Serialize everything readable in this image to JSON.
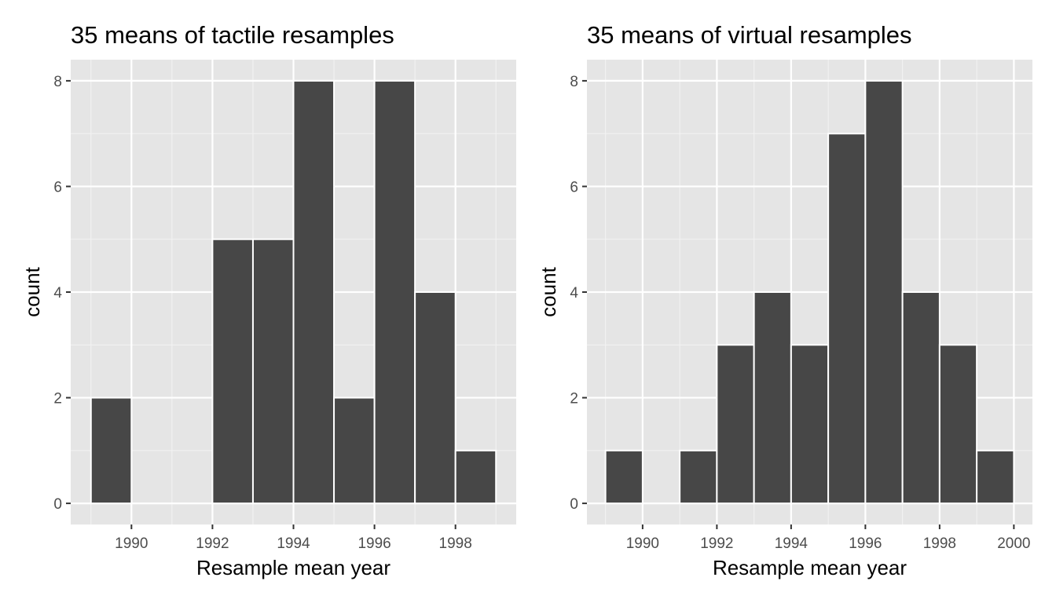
{
  "chart_data": [
    {
      "type": "bar",
      "title": "35 means of tactile resamples",
      "xlabel": "Resample mean year",
      "ylabel": "count",
      "xlim": [
        1988.5,
        1999.5
      ],
      "ylim": [
        -0.4,
        8.4
      ],
      "xticks": [
        1990,
        1992,
        1994,
        1996,
        1998
      ],
      "yticks": [
        0,
        2,
        4,
        6,
        8
      ],
      "bin_width": 1,
      "bins": [
        {
          "x0": 1989,
          "x1": 1990,
          "count": 2
        },
        {
          "x0": 1992,
          "x1": 1993,
          "count": 5
        },
        {
          "x0": 1993,
          "x1": 1994,
          "count": 5
        },
        {
          "x0": 1994,
          "x1": 1995,
          "count": 8
        },
        {
          "x0": 1995,
          "x1": 1996,
          "count": 2
        },
        {
          "x0": 1996,
          "x1": 1997,
          "count": 8
        },
        {
          "x0": 1997,
          "x1": 1998,
          "count": 4
        },
        {
          "x0": 1998,
          "x1": 1999,
          "count": 1
        }
      ],
      "bar_color": "#474747",
      "grid": true
    },
    {
      "type": "bar",
      "title": "35 means of virtual resamples",
      "xlabel": "Resample mean year",
      "ylabel": "count",
      "xlim": [
        1988.5,
        2000.5
      ],
      "ylim": [
        -0.4,
        8.4
      ],
      "xticks": [
        1990,
        1992,
        1994,
        1996,
        1998,
        2000
      ],
      "yticks": [
        0,
        2,
        4,
        6,
        8
      ],
      "bin_width": 1,
      "bins": [
        {
          "x0": 1989,
          "x1": 1990,
          "count": 1
        },
        {
          "x0": 1991,
          "x1": 1992,
          "count": 1
        },
        {
          "x0": 1992,
          "x1": 1993,
          "count": 3
        },
        {
          "x0": 1993,
          "x1": 1994,
          "count": 4
        },
        {
          "x0": 1994,
          "x1": 1995,
          "count": 3
        },
        {
          "x0": 1995,
          "x1": 1996,
          "count": 7
        },
        {
          "x0": 1996,
          "x1": 1997,
          "count": 8
        },
        {
          "x0": 1997,
          "x1": 1998,
          "count": 4
        },
        {
          "x0": 1998,
          "x1": 1999,
          "count": 3
        },
        {
          "x0": 1999,
          "x1": 2000,
          "count": 1
        }
      ],
      "bar_color": "#474747",
      "grid": true
    }
  ]
}
